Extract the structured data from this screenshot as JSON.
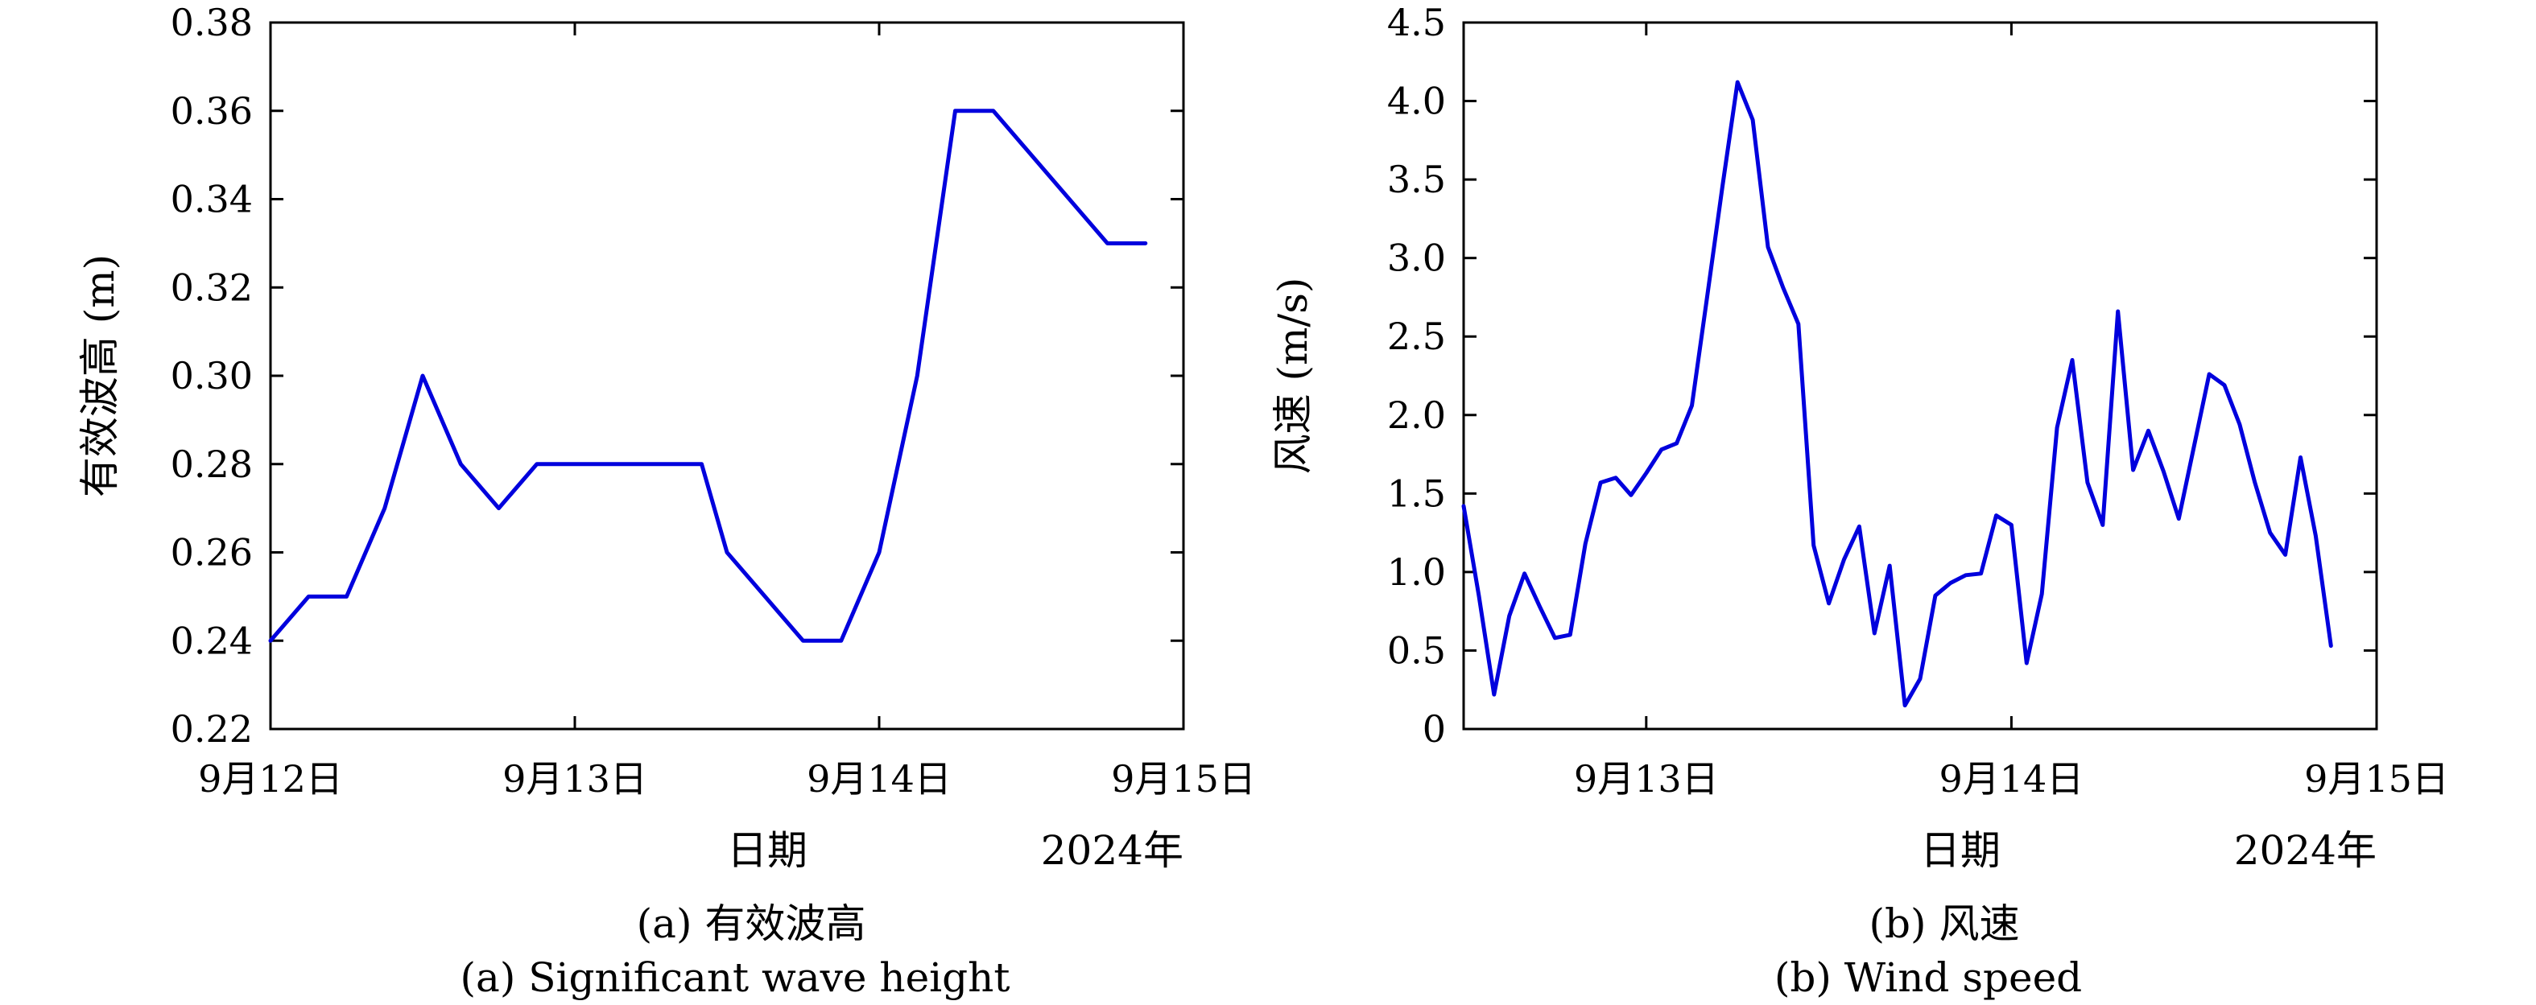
{
  "chart_data": [
    {
      "type": "line",
      "ylabel": "有效波高 (m)",
      "xlabel": "日期",
      "x_offset_label": "2024年",
      "caption_zh": "(a) 有效波高",
      "caption_en": "(a) Significant wave height",
      "line_color": "#0000dd",
      "xlim": [
        "2024-09-12T00:00",
        "2024-09-15T00:00"
      ],
      "ylim": [
        0.22,
        0.38
      ],
      "yticks": [
        0.22,
        0.24,
        0.26,
        0.28,
        0.3,
        0.32,
        0.34,
        0.36,
        0.38
      ],
      "ytick_labels": [
        "0.22",
        "0.24",
        "0.26",
        "0.28",
        "0.30",
        "0.32",
        "0.34",
        "0.36",
        "0.38"
      ],
      "xticks": [
        "2024-09-12T00:00",
        "2024-09-13T00:00",
        "2024-09-14T00:00",
        "2024-09-15T00:00"
      ],
      "xtick_labels": [
        "9月12日",
        "9月13日",
        "9月14日",
        "9月15日"
      ],
      "grid": false,
      "series": [
        {
          "x": [
            "2024-09-12T00:00",
            "2024-09-12T03:00",
            "2024-09-12T06:00",
            "2024-09-12T09:00",
            "2024-09-12T12:00",
            "2024-09-12T15:00",
            "2024-09-12T18:00",
            "2024-09-12T21:00",
            "2024-09-13T10:00",
            "2024-09-13T12:00",
            "2024-09-13T15:00",
            "2024-09-13T18:00",
            "2024-09-13T21:00",
            "2024-09-14T00:00",
            "2024-09-14T03:00",
            "2024-09-14T06:00",
            "2024-09-14T09:00",
            "2024-09-14T18:00",
            "2024-09-14T21:00"
          ],
          "values": [
            0.24,
            0.25,
            0.25,
            0.27,
            0.3,
            0.28,
            0.27,
            0.28,
            0.28,
            0.26,
            0.25,
            0.24,
            0.24,
            0.26,
            0.3,
            0.36,
            0.36,
            0.33,
            0.33
          ]
        }
      ]
    },
    {
      "type": "line",
      "ylabel": "风速 (m/s)",
      "xlabel": "日期",
      "x_offset_label": "2024年",
      "caption_zh": "(b) 风速",
      "caption_en": "(b) Wind speed",
      "line_color": "#0000dd",
      "xlim": [
        "2024-09-12T12:00",
        "2024-09-15T00:00"
      ],
      "ylim": [
        0,
        4.5
      ],
      "yticks": [
        0,
        0.5,
        1.0,
        1.5,
        2.0,
        2.5,
        3.0,
        3.5,
        4.0,
        4.5
      ],
      "ytick_labels": [
        "0",
        "0.5",
        "1.0",
        "1.5",
        "2.0",
        "2.5",
        "3.0",
        "3.5",
        "4.0",
        "4.5"
      ],
      "xticks": [
        "2024-09-13T00:00",
        "2024-09-14T00:00",
        "2024-09-15T00:00"
      ],
      "xtick_labels": [
        "9月13日",
        "9月14日",
        "9月15日"
      ],
      "grid": false,
      "series": [
        {
          "x": [
            "2024-09-12T12:00",
            "2024-09-12T13:00",
            "2024-09-12T14:00",
            "2024-09-12T15:00",
            "2024-09-12T16:00",
            "2024-09-12T17:00",
            "2024-09-12T18:00",
            "2024-09-12T19:00",
            "2024-09-12T20:00",
            "2024-09-12T21:00",
            "2024-09-12T22:00",
            "2024-09-12T23:00",
            "2024-09-13T00:00",
            "2024-09-13T01:00",
            "2024-09-13T02:00",
            "2024-09-13T03:00",
            "2024-09-13T04:00",
            "2024-09-13T05:00",
            "2024-09-13T06:00",
            "2024-09-13T07:00",
            "2024-09-13T08:00",
            "2024-09-13T09:00",
            "2024-09-13T10:00",
            "2024-09-13T11:00",
            "2024-09-13T12:00",
            "2024-09-13T13:00",
            "2024-09-13T14:00",
            "2024-09-13T15:00",
            "2024-09-13T16:00",
            "2024-09-13T17:00",
            "2024-09-13T18:00",
            "2024-09-13T19:00",
            "2024-09-13T20:00",
            "2024-09-13T21:00",
            "2024-09-13T22:00",
            "2024-09-13T23:00",
            "2024-09-14T00:00",
            "2024-09-14T01:00",
            "2024-09-14T02:00",
            "2024-09-14T03:00",
            "2024-09-14T04:00",
            "2024-09-14T05:00",
            "2024-09-14T06:00",
            "2024-09-14T07:00",
            "2024-09-14T08:00",
            "2024-09-14T09:00",
            "2024-09-14T10:00",
            "2024-09-14T11:00",
            "2024-09-14T12:00",
            "2024-09-14T13:00",
            "2024-09-14T14:00",
            "2024-09-14T15:00",
            "2024-09-14T16:00",
            "2024-09-14T17:00",
            "2024-09-14T18:00",
            "2024-09-14T19:00",
            "2024-09-14T20:00",
            "2024-09-14T21:00"
          ],
          "values": [
            1.42,
            0.85,
            0.22,
            0.72,
            0.99,
            0.78,
            0.58,
            0.6,
            1.18,
            1.57,
            1.6,
            1.49,
            1.63,
            1.78,
            1.82,
            2.06,
            2.75,
            3.45,
            4.12,
            3.88,
            3.07,
            2.81,
            2.58,
            1.17,
            0.8,
            1.08,
            1.29,
            0.61,
            1.04,
            0.15,
            0.32,
            0.85,
            0.93,
            0.98,
            0.99,
            1.36,
            1.3,
            0.42,
            0.86,
            1.92,
            2.35,
            1.57,
            1.3,
            2.66,
            1.65,
            1.9,
            1.64,
            1.34,
            1.8,
            2.26,
            2.19,
            1.94,
            1.57,
            1.25,
            1.11,
            1.73,
            1.23,
            0.53
          ]
        }
      ]
    }
  ]
}
